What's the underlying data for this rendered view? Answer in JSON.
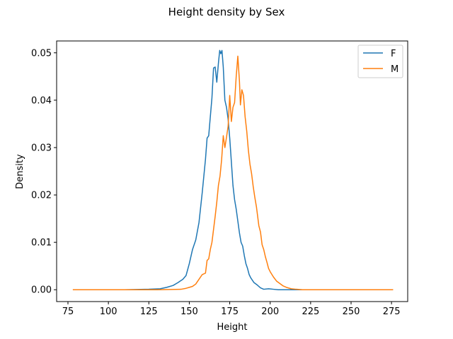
{
  "chart_data": {
    "type": "line",
    "title": "Height density by Sex",
    "xlabel": "Height",
    "ylabel": "Density",
    "xlim": [
      68,
      285
    ],
    "ylim": [
      -0.0025,
      0.0525
    ],
    "xticks": [
      75,
      100,
      125,
      150,
      175,
      200,
      225,
      250,
      275
    ],
    "yticks": [
      0.0,
      0.01,
      0.02,
      0.03,
      0.04,
      0.05
    ],
    "ytick_labels": [
      "0.00",
      "0.01",
      "0.02",
      "0.03",
      "0.04",
      "0.05"
    ],
    "grid": false,
    "legend_position": "top-right",
    "series": [
      {
        "name": "F",
        "color": "#1f77b4",
        "points": [
          [
            83,
            0.0
          ],
          [
            110,
            0.0
          ],
          [
            125,
            0.0001
          ],
          [
            132,
            0.0002
          ],
          [
            136,
            0.0005
          ],
          [
            140,
            0.0009
          ],
          [
            143,
            0.0015
          ],
          [
            146,
            0.0022
          ],
          [
            148,
            0.003
          ],
          [
            150,
            0.0055
          ],
          [
            152,
            0.0085
          ],
          [
            154,
            0.0105
          ],
          [
            156,
            0.0142
          ],
          [
            158,
            0.0205
          ],
          [
            159,
            0.024
          ],
          [
            160,
            0.0275
          ],
          [
            161,
            0.032
          ],
          [
            162,
            0.0325
          ],
          [
            163,
            0.0365
          ],
          [
            164,
            0.0405
          ],
          [
            165,
            0.0468
          ],
          [
            166,
            0.047
          ],
          [
            167,
            0.0438
          ],
          [
            168,
            0.0478
          ],
          [
            168.8,
            0.0505
          ],
          [
            169.5,
            0.0498
          ],
          [
            170.2,
            0.0505
          ],
          [
            171,
            0.047
          ],
          [
            172,
            0.04
          ],
          [
            173,
            0.0385
          ],
          [
            174,
            0.036
          ],
          [
            175,
            0.032
          ],
          [
            176,
            0.027
          ],
          [
            177,
            0.022
          ],
          [
            178,
            0.019
          ],
          [
            179,
            0.017
          ],
          [
            180,
            0.0145
          ],
          [
            181,
            0.012
          ],
          [
            182,
            0.01
          ],
          [
            183,
            0.0092
          ],
          [
            184,
            0.0072
          ],
          [
            185,
            0.0055
          ],
          [
            186,
            0.0045
          ],
          [
            187,
            0.0032
          ],
          [
            188,
            0.0025
          ],
          [
            190,
            0.0015
          ],
          [
            192,
            0.001
          ],
          [
            194,
            0.0004
          ],
          [
            196,
            0.0001
          ],
          [
            199,
            0.0002
          ],
          [
            202,
            0.0001
          ],
          [
            205,
            0.0
          ],
          [
            220,
            0.0
          ],
          [
            240,
            0.0
          ],
          [
            256,
            0.0
          ]
        ]
      },
      {
        "name": "M",
        "color": "#ff7f0e",
        "points": [
          [
            78,
            0.0
          ],
          [
            110,
            0.0
          ],
          [
            130,
            0.0
          ],
          [
            145,
            0.0001
          ],
          [
            148,
            0.0003
          ],
          [
            150,
            0.0005
          ],
          [
            152,
            0.0007
          ],
          [
            154,
            0.0012
          ],
          [
            156,
            0.0022
          ],
          [
            158,
            0.0032
          ],
          [
            160,
            0.0035
          ],
          [
            161,
            0.0062
          ],
          [
            162,
            0.0065
          ],
          [
            163,
            0.0085
          ],
          [
            164,
            0.01
          ],
          [
            166,
            0.0155
          ],
          [
            167,
            0.0185
          ],
          [
            168,
            0.022
          ],
          [
            169,
            0.024
          ],
          [
            170,
            0.0275
          ],
          [
            171,
            0.0325
          ],
          [
            172,
            0.03
          ],
          [
            173,
            0.0322
          ],
          [
            174,
            0.0345
          ],
          [
            175,
            0.041
          ],
          [
            176,
            0.0355
          ],
          [
            177,
            0.0385
          ],
          [
            178,
            0.0395
          ],
          [
            179,
            0.045
          ],
          [
            180,
            0.0493
          ],
          [
            181,
            0.044
          ],
          [
            181.6,
            0.039
          ],
          [
            182.5,
            0.0422
          ],
          [
            183.5,
            0.041
          ],
          [
            184.5,
            0.0365
          ],
          [
            185.5,
            0.0335
          ],
          [
            186.5,
            0.0295
          ],
          [
            187.5,
            0.0265
          ],
          [
            188.5,
            0.0245
          ],
          [
            189.5,
            0.0218
          ],
          [
            190.5,
            0.0195
          ],
          [
            191.5,
            0.0175
          ],
          [
            193,
            0.0135
          ],
          [
            194,
            0.0122
          ],
          [
            195,
            0.0095
          ],
          [
            196,
            0.0085
          ],
          [
            197,
            0.007
          ],
          [
            198,
            0.0058
          ],
          [
            199,
            0.0045
          ],
          [
            200,
            0.0038
          ],
          [
            202,
            0.0027
          ],
          [
            204,
            0.0018
          ],
          [
            206,
            0.0013
          ],
          [
            208,
            0.0008
          ],
          [
            210,
            0.0005
          ],
          [
            213,
            0.0002
          ],
          [
            216,
            0.0001
          ],
          [
            220,
            0.0
          ],
          [
            250,
            0.0
          ],
          [
            276,
            0.0
          ]
        ]
      }
    ]
  }
}
